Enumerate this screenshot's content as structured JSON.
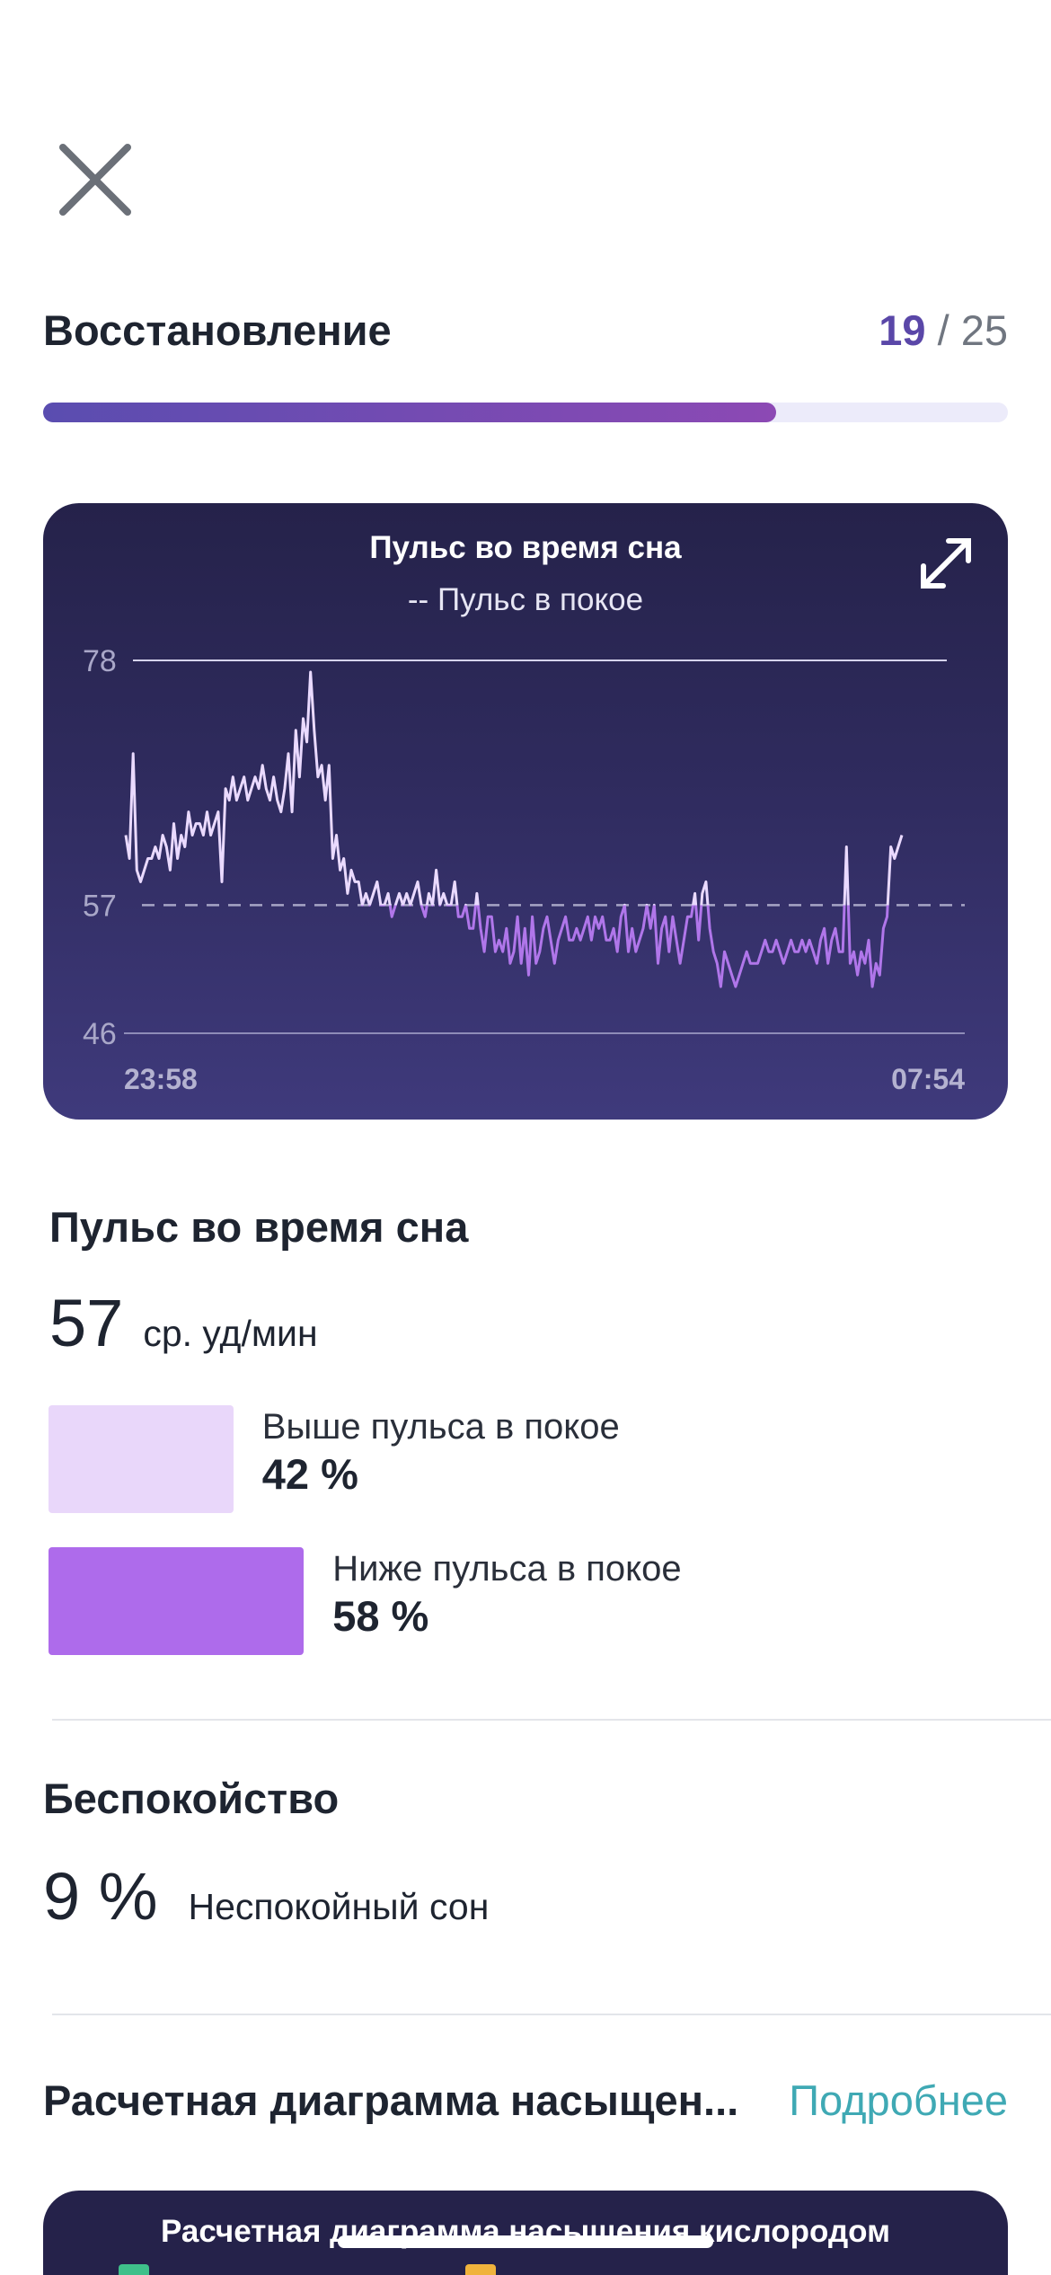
{
  "header": {
    "close_icon": "close-icon"
  },
  "recovery": {
    "title": "Восстановление",
    "score": "19",
    "score_sep": " / ",
    "score_max": "25",
    "progress_fraction": 0.76
  },
  "chart_data": {
    "type": "line",
    "title": "Пульс во время сна",
    "subtitle": "-- Пульс в покое",
    "xlabel": "",
    "ylabel": "",
    "x_ticks": [
      "23:58",
      "07:54"
    ],
    "y_ticks": [
      78,
      57,
      46
    ],
    "ylim": [
      46,
      78
    ],
    "resting_hr": 57,
    "grid": false,
    "series": [
      {
        "colors": {
          "above": "#eadaff",
          "below": "#b076ea"
        },
        "values": [
          63,
          61,
          70,
          60,
          59,
          60,
          61,
          61,
          62,
          61,
          63,
          62,
          60,
          64,
          61,
          63,
          62,
          65,
          63,
          64,
          64,
          63,
          65,
          63,
          64,
          65,
          59,
          67,
          66,
          68,
          66,
          67,
          68,
          66,
          67,
          68,
          67,
          69,
          67,
          66,
          68,
          66,
          65,
          67,
          70,
          65,
          72,
          68,
          73,
          71,
          77,
          72,
          68,
          69,
          66,
          69,
          61,
          63,
          60,
          61,
          58,
          60,
          59,
          59,
          57,
          58,
          57,
          58,
          59,
          57,
          57,
          58,
          56,
          57,
          58,
          57,
          58,
          57,
          58,
          59,
          57,
          56,
          58,
          57,
          60,
          57,
          58,
          57,
          57,
          59,
          56,
          56,
          57,
          55,
          55,
          58,
          55,
          53,
          56,
          56,
          53,
          54,
          53,
          55,
          52,
          53,
          56,
          52,
          55,
          51,
          56,
          52,
          53,
          55,
          56,
          54,
          52,
          54,
          55,
          56,
          54,
          54,
          55,
          54,
          55,
          56,
          54,
          56,
          55,
          56,
          54,
          54,
          55,
          53,
          56,
          57,
          53,
          55,
          53,
          54,
          55,
          57,
          55,
          57,
          52,
          55,
          56,
          53,
          56,
          54,
          52,
          54,
          56,
          56,
          58,
          54,
          58,
          59,
          55,
          53,
          52,
          50,
          53,
          52,
          51,
          50,
          51,
          52,
          53,
          52,
          52,
          52,
          53,
          54,
          53,
          53,
          54,
          53,
          52,
          53,
          54,
          53,
          53,
          54,
          53,
          54,
          53,
          52,
          54,
          55,
          52,
          54,
          55,
          53,
          53,
          62,
          52,
          53,
          51,
          53,
          52,
          54,
          50,
          52,
          51,
          55,
          56,
          62,
          61,
          62,
          63
        ]
      }
    ]
  },
  "hr_section": {
    "title": "Пульс во время сна",
    "avg_value": "57",
    "avg_unit": "ср. уд/мин",
    "above": {
      "label": "Выше пульса в покое",
      "pct": "42 %",
      "value": 42,
      "color": "#e9d7fa"
    },
    "below": {
      "label": "Ниже пульса в покое",
      "pct": "58 %",
      "value": 58,
      "color": "#ae6beb"
    }
  },
  "restlessness": {
    "title": "Беспокойство",
    "value": "9 %",
    "label": "Неспокойный сон"
  },
  "spo2": {
    "title": "Расчетная диаграмма насыщен...",
    "more_link": "Подробнее",
    "card_title": "Расчетная диаграмма насыщения кислородом"
  }
}
